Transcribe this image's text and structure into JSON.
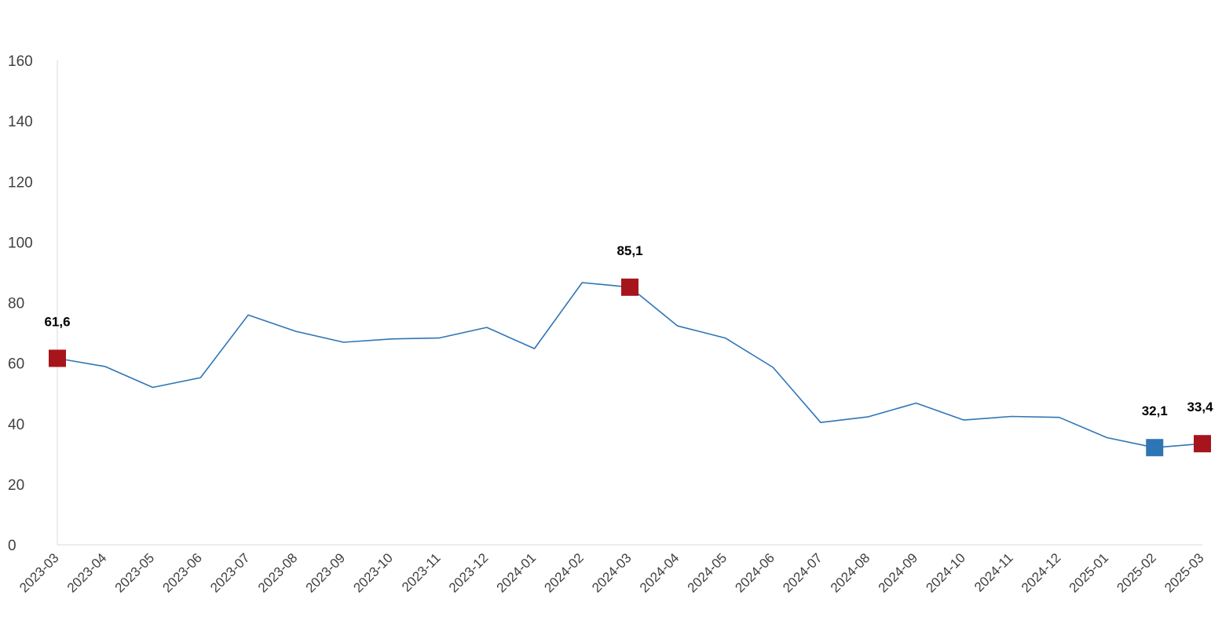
{
  "chart_data": {
    "type": "line",
    "title": "",
    "xlabel": "",
    "ylabel": "",
    "ylim": [
      0,
      160
    ],
    "yticks": [
      0,
      20,
      40,
      60,
      80,
      100,
      120,
      140,
      160
    ],
    "grid": false,
    "legend": "none",
    "categories": [
      "2023-03",
      "2023-04",
      "2023-05",
      "2023-06",
      "2023-07",
      "2023-08",
      "2023-09",
      "2023-10",
      "2023-11",
      "2023-12",
      "2024-01",
      "2024-02",
      "2024-03",
      "2024-04",
      "2024-05",
      "2024-06",
      "2024-07",
      "2024-08",
      "2024-09",
      "2024-10",
      "2024-11",
      "2024-12",
      "2025-01",
      "2025-02",
      "2025-03"
    ],
    "series": [
      {
        "color": "#2e75b6",
        "values": [
          61.6,
          58.9,
          52.0,
          55.2,
          75.9,
          70.5,
          66.9,
          68.0,
          68.3,
          71.8,
          64.8,
          86.6,
          85.1,
          72.3,
          68.3,
          58.6,
          40.4,
          42.3,
          46.8,
          41.2,
          42.4,
          42.1,
          35.4,
          32.1,
          33.4
        ]
      }
    ],
    "highlights": [
      {
        "category": "2023-03",
        "label": "61,6",
        "color": "#a6151c"
      },
      {
        "category": "2024-03",
        "label": "85,1",
        "color": "#a6151c"
      },
      {
        "category": "2025-02",
        "label": "32,1",
        "color": "#2e75b6"
      },
      {
        "category": "2025-03",
        "label": "33,4",
        "color": "#a6151c"
      }
    ],
    "axis_color": "#d9d9d9"
  }
}
